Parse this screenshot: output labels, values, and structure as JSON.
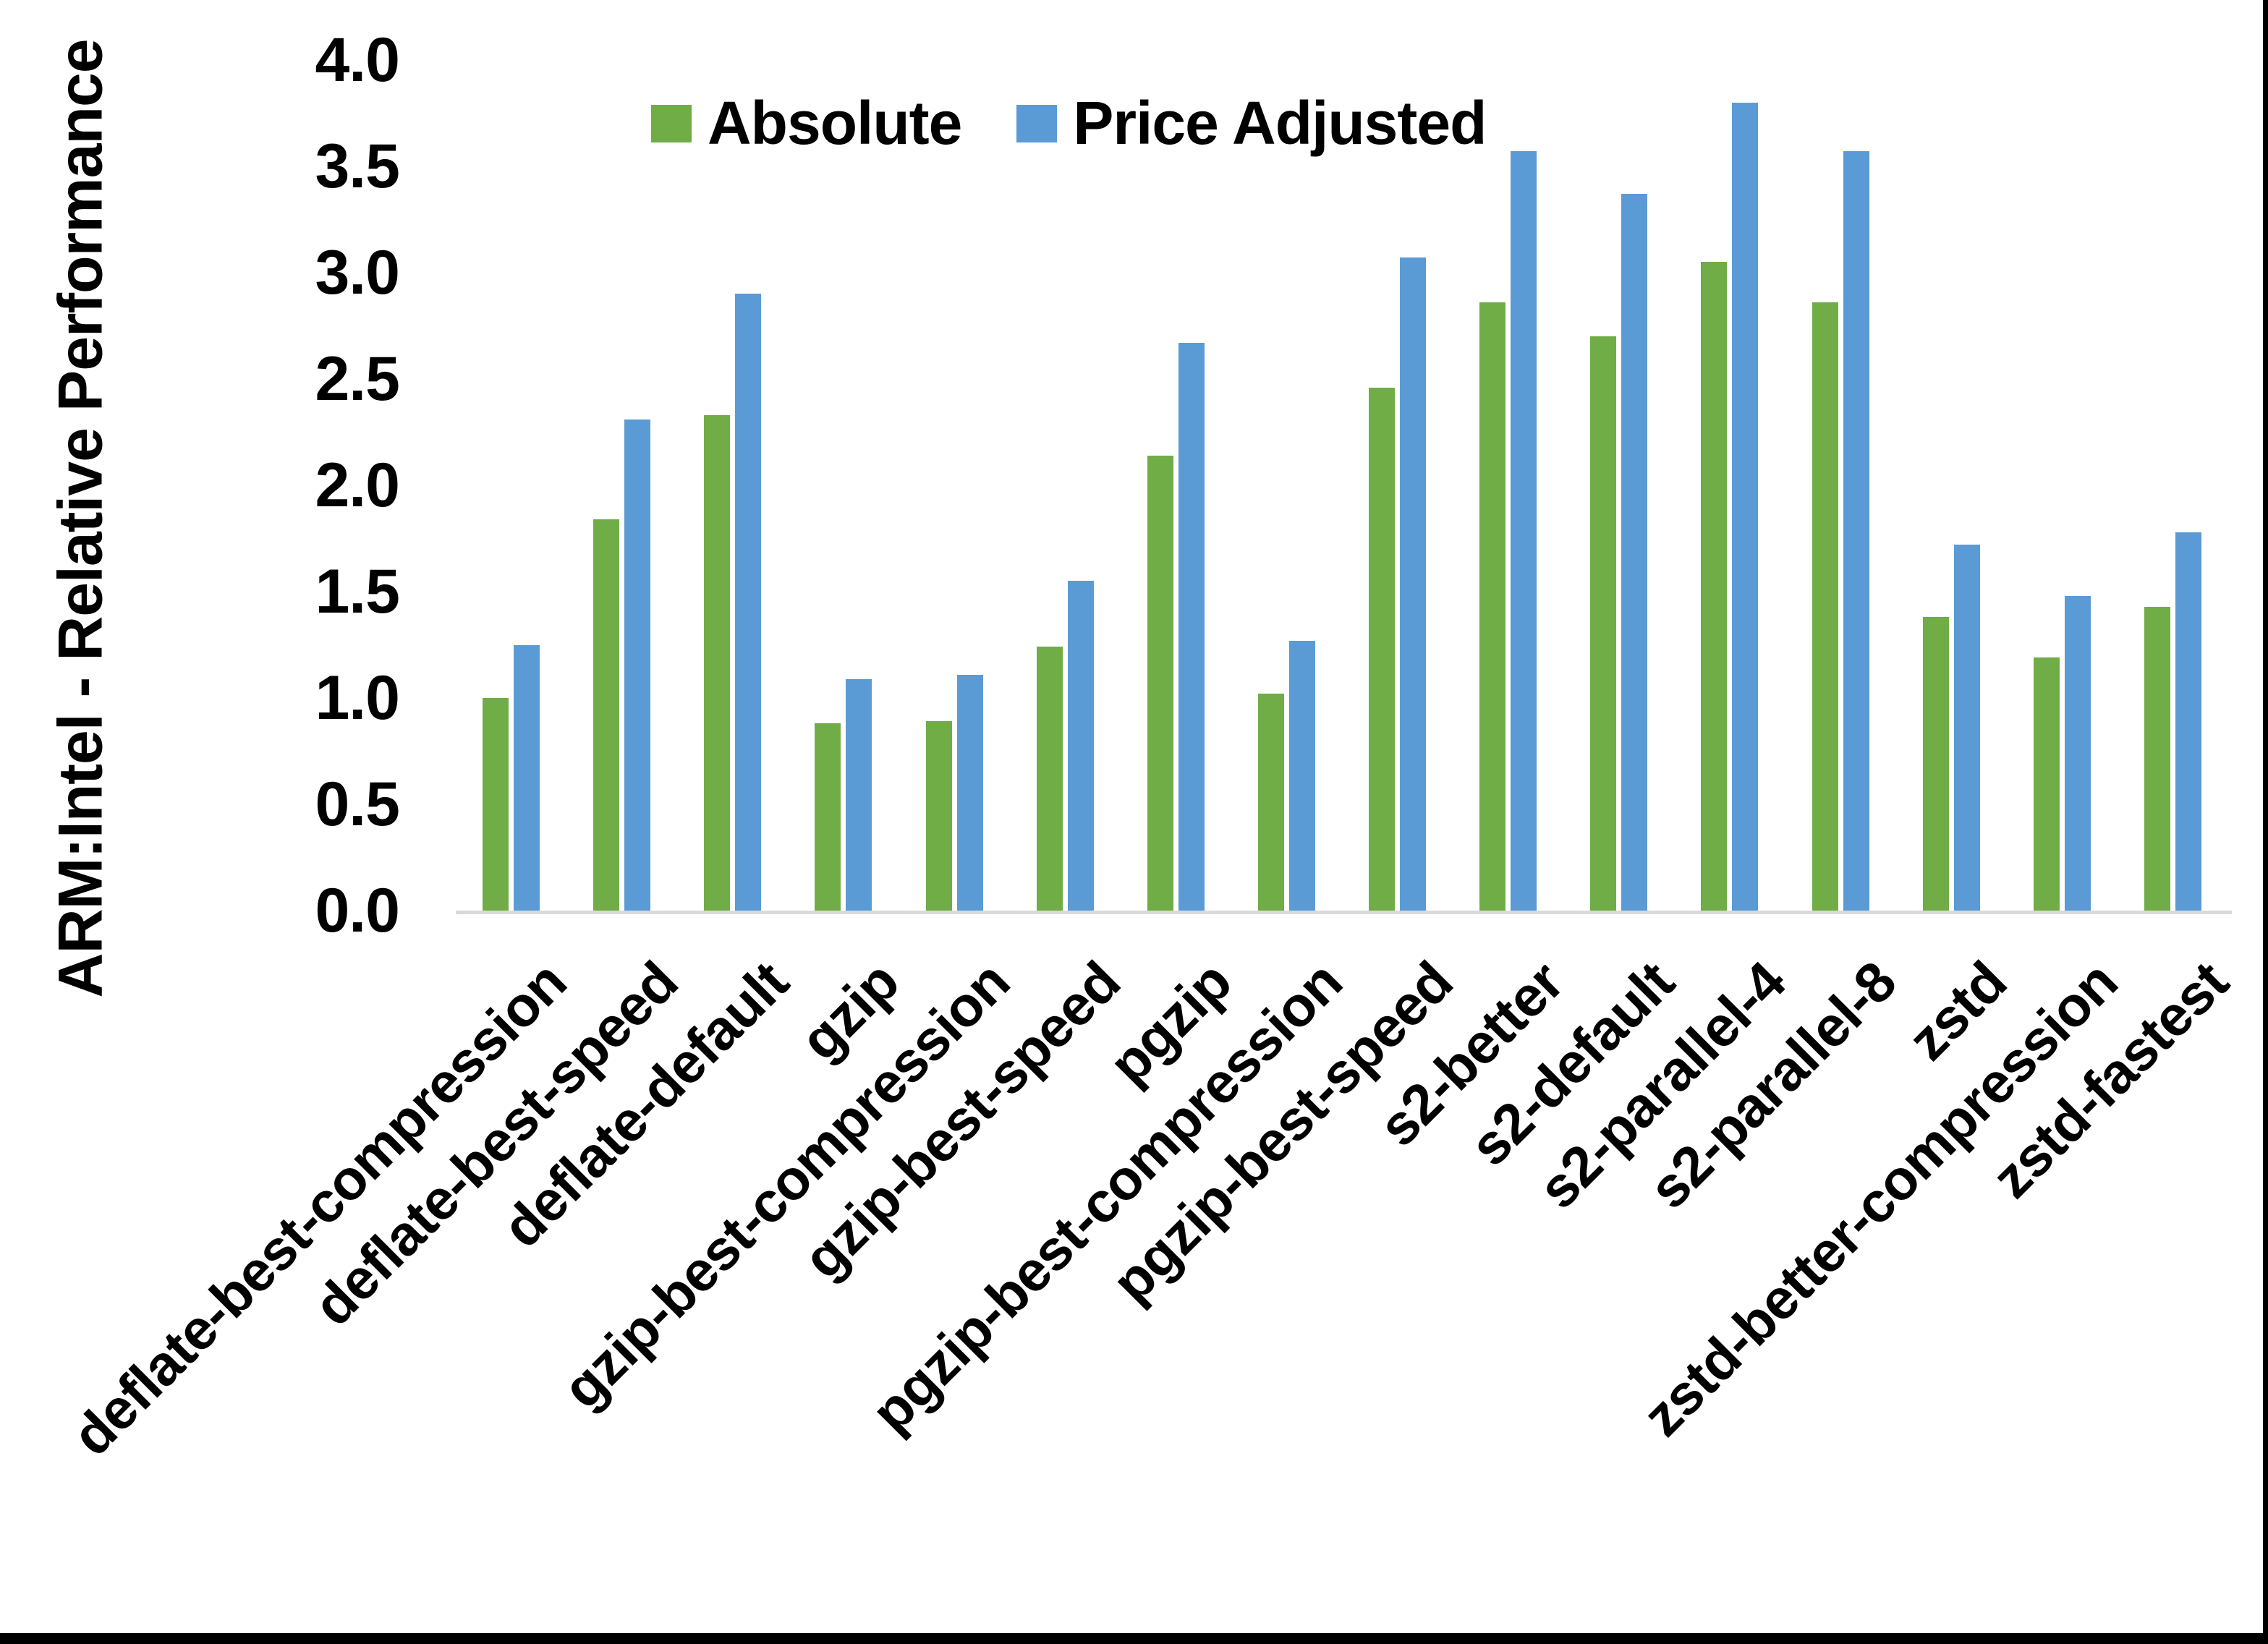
{
  "page": {
    "background": "#ffffff",
    "border_color": "#000000"
  },
  "chart_data": {
    "type": "bar",
    "title": "",
    "xlabel": "",
    "ylabel": "ARM:Intel - Relative Performance",
    "ylim": [
      0.0,
      4.0
    ],
    "ytick_step": 0.5,
    "ytick_labels": [
      "0.0",
      "0.5",
      "1.0",
      "1.5",
      "2.0",
      "2.5",
      "3.0",
      "3.5",
      "4.0"
    ],
    "grid": false,
    "legend_position": "top-center",
    "axis_line_color": "#d9d9d9",
    "text_color": "#000000",
    "categories": [
      "deflate-best-compression",
      "deflate-best-speed",
      "deflate-default",
      "gzip",
      "gzip-best-compression",
      "gzip-best-speed",
      "pgzip",
      "pgzip-best-compression",
      "pgzip-best-speed",
      "s2-better",
      "s2-default",
      "s2-parallel-4",
      "s2-parallel-8",
      "zstd",
      "zstd-better-compression",
      "zstd-fastest"
    ],
    "series": [
      {
        "name": "Absolute",
        "color": "#70AD47",
        "values": [
          1.0,
          1.84,
          2.33,
          0.88,
          0.89,
          1.24,
          2.14,
          1.02,
          2.46,
          2.86,
          2.7,
          3.05,
          2.86,
          1.38,
          1.19,
          1.43
        ]
      },
      {
        "name": "Price Adjusted",
        "color": "#5B9BD5",
        "values": [
          1.25,
          2.31,
          2.9,
          1.09,
          1.11,
          1.55,
          2.67,
          1.27,
          3.07,
          3.57,
          3.37,
          3.8,
          3.57,
          1.72,
          1.48,
          1.78
        ]
      }
    ]
  }
}
